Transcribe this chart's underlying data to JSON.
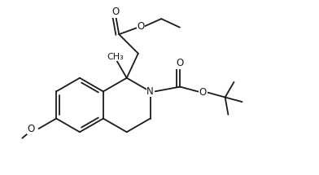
{
  "background": "#ffffff",
  "line_color": "#1a1a1a",
  "line_width": 1.3,
  "font_size": 8.5,
  "figsize": [
    3.92,
    2.15
  ],
  "dpi": 100,
  "xlim": [
    0,
    10
  ],
  "ylim": [
    0,
    5.5
  ]
}
